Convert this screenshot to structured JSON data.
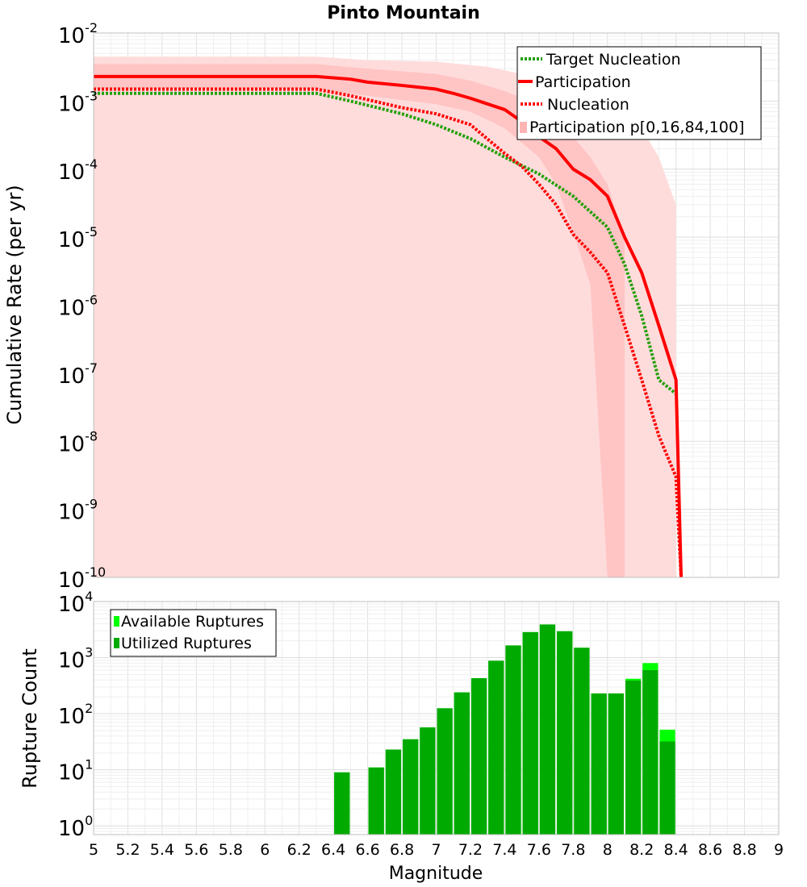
{
  "figure": {
    "title": "Pinto Mountain"
  },
  "x_axis": {
    "label": "Magnitude",
    "tick_labels": [
      "5",
      "5.2",
      "5.4",
      "5.6",
      "5.8",
      "6",
      "6.2",
      "6.4",
      "6.6",
      "6.8",
      "7",
      "7.2",
      "7.4",
      "7.6",
      "7.8",
      "8",
      "8.2",
      "8.4",
      "8.6",
      "8.8",
      "9"
    ],
    "range": [
      5,
      9
    ]
  },
  "chart_data": [
    {
      "type": "line",
      "ylabel": "Cumulative Rate (per yr)",
      "yscale": "log",
      "ylim": [
        1e-10,
        0.01
      ],
      "y_ticks": [
        {
          "base": "10",
          "exp": "-2"
        },
        {
          "base": "10",
          "exp": "-3"
        },
        {
          "base": "10",
          "exp": "-4"
        },
        {
          "base": "10",
          "exp": "-5"
        },
        {
          "base": "10",
          "exp": "-6"
        },
        {
          "base": "10",
          "exp": "-7"
        },
        {
          "base": "10",
          "exp": "-8"
        },
        {
          "base": "10",
          "exp": "-9"
        },
        {
          "base": "10",
          "exp": "-10"
        }
      ],
      "grid": true,
      "legend_position": "top-right",
      "legend": [
        {
          "label": "Target Nucleation",
          "color": "#22a00a",
          "style": "dotted"
        },
        {
          "label": "Participation",
          "color": "#ff0000",
          "style": "solid"
        },
        {
          "label": " Nucleation",
          "color": "#ff0000",
          "style": "dotted"
        },
        {
          "label": "Participation p[0,16,84,100]",
          "color": "#ffb4b4",
          "style": "band"
        }
      ],
      "series": [
        {
          "name": "Target Nucleation",
          "color": "#22a00a",
          "x": [
            5.0,
            6.3,
            6.5,
            6.8,
            7.0,
            7.2,
            7.4,
            7.6,
            7.8,
            8.0,
            8.1,
            8.2,
            8.3,
            8.4
          ],
          "y": [
            0.0013,
            0.0013,
            0.001,
            0.00065,
            0.00045,
            0.00028,
            0.00015,
            8.5e-05,
            4e-05,
            1.4e-05,
            4e-06,
            7e-07,
            8e-08,
            5e-08
          ]
        },
        {
          "name": "Participation",
          "color": "#ff0000",
          "x": [
            5.0,
            6.3,
            6.5,
            6.6,
            6.8,
            7.0,
            7.1,
            7.2,
            7.4,
            7.5,
            7.6,
            7.7,
            7.8,
            7.9,
            8.0,
            8.1,
            8.2,
            8.3,
            8.4,
            8.43
          ],
          "y": [
            0.0023,
            0.0023,
            0.0021,
            0.0019,
            0.0017,
            0.0015,
            0.0013,
            0.0011,
            0.00075,
            0.0005,
            0.0003,
            0.0002,
            0.0001,
            7e-05,
            4e-05,
            1e-05,
            3e-06,
            5e-07,
            8e-08,
            1e-10
          ]
        },
        {
          "name": " Nucleation",
          "color": "#ff0000",
          "x": [
            5.0,
            6.3,
            6.5,
            6.8,
            7.0,
            7.2,
            7.4,
            7.5,
            7.6,
            7.7,
            7.8,
            7.9,
            8.0,
            8.1,
            8.2,
            8.3,
            8.4,
            8.43
          ],
          "y": [
            0.0015,
            0.0015,
            0.0012,
            0.0008,
            0.00065,
            0.00045,
            0.00017,
            0.00011,
            6e-05,
            3e-05,
            1.1e-05,
            6e-06,
            3e-06,
            5e-07,
            8e-08,
            1.2e-08,
            3e-09,
            1e-10
          ]
        }
      ],
      "bands": [
        {
          "name": "p0-p100",
          "color": "#ffdcdc",
          "x": [
            5.0,
            6.3,
            6.6,
            7.0,
            7.3,
            7.5,
            7.7,
            7.9,
            8.1,
            8.2,
            8.3,
            8.4
          ],
          "upper": [
            0.0045,
            0.0045,
            0.004,
            0.0038,
            0.0032,
            0.0025,
            0.002,
            0.0015,
            0.0011,
            0.0004,
            0.00015,
            3e-05
          ],
          "lower": [
            1e-10,
            1e-10,
            1e-10,
            1e-10,
            1e-10,
            1e-10,
            1e-10,
            1e-10,
            1e-10,
            1e-10,
            1e-10,
            1e-10
          ]
        },
        {
          "name": "p16-p84",
          "color": "#ffc4c4",
          "x": [
            5.0,
            6.3,
            6.6,
            7.0,
            7.2,
            7.4,
            7.6,
            7.7,
            7.8,
            7.9,
            8.0,
            8.1
          ],
          "upper": [
            0.0035,
            0.0035,
            0.003,
            0.0025,
            0.002,
            0.0014,
            0.0009,
            0.0006,
            0.0003,
            0.00015,
            6e-05,
            1e-05
          ],
          "lower": [
            0.0015,
            0.0015,
            0.0012,
            0.0009,
            0.0007,
            0.0004,
            0.00015,
            6e-05,
            1.2e-05,
            2e-06,
            1e-10,
            1e-10
          ]
        }
      ]
    },
    {
      "type": "bar",
      "ylabel": "Rupture Count",
      "yscale": "log",
      "ylim": [
        0.7,
        10000
      ],
      "y_ticks": [
        {
          "base": "10",
          "exp": "4"
        },
        {
          "base": "10",
          "exp": "3"
        },
        {
          "base": "10",
          "exp": "2"
        },
        {
          "base": "10",
          "exp": "1"
        },
        {
          "base": "10",
          "exp": "0"
        }
      ],
      "grid": true,
      "legend_position": "top-left",
      "legend": [
        {
          "label": "Available Ruptures",
          "color": "#00ff00"
        },
        {
          "label": "Utilized Ruptures",
          "color": "#00aa00"
        }
      ],
      "bin_width": 0.1,
      "bin_centers": [
        6.45,
        6.65,
        6.75,
        6.85,
        6.95,
        7.05,
        7.15,
        7.25,
        7.35,
        7.45,
        7.55,
        7.65,
        7.75,
        7.85,
        7.95,
        8.05,
        8.15,
        8.25,
        8.35
      ],
      "series": [
        {
          "name": "Available Ruptures",
          "color": "#00ff00",
          "values": [
            9,
            11,
            23,
            35,
            57,
            125,
            240,
            430,
            880,
            1650,
            2850,
            3900,
            2950,
            1500,
            230,
            230,
            420,
            800,
            52
          ]
        },
        {
          "name": "Utilized Ruptures",
          "color": "#00aa00",
          "values": [
            9,
            11,
            23,
            35,
            57,
            125,
            240,
            430,
            880,
            1650,
            2850,
            3900,
            2950,
            1500,
            230,
            230,
            390,
            600,
            32
          ]
        }
      ]
    }
  ]
}
